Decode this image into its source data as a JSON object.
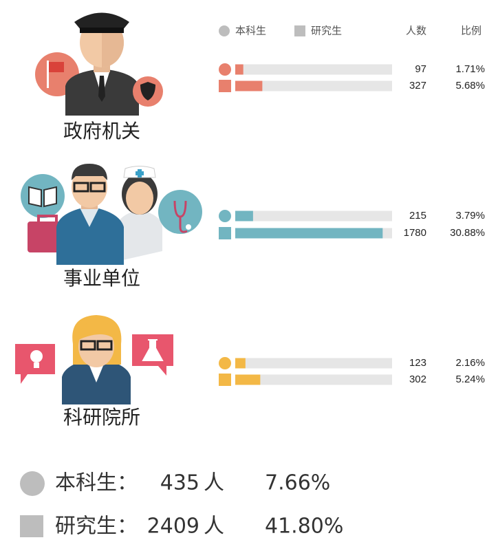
{
  "legend": {
    "undergrad": "本科生",
    "grad": "研究生",
    "count_header": "人数",
    "ratio_header": "比例"
  },
  "groups": [
    {
      "label": "政府机关",
      "color": "#e8806d",
      "rows": [
        {
          "count": 97,
          "ratio": "1.71%"
        },
        {
          "count": 327,
          "ratio": "5.68%"
        }
      ]
    },
    {
      "label": "事业单位",
      "color": "#72b5c1",
      "rows": [
        {
          "count": 215,
          "ratio": "3.79%"
        },
        {
          "count": 1780,
          "ratio": "30.88%"
        }
      ]
    },
    {
      "label": "科研院所",
      "color": "#f3b846",
      "rows": [
        {
          "count": 123,
          "ratio": "2.16%"
        },
        {
          "count": 302,
          "ratio": "5.24%"
        }
      ]
    }
  ],
  "summary": [
    {
      "label": "本科生：",
      "count": 435,
      "unit": "人",
      "ratio": "7.66%"
    },
    {
      "label": "研究生：",
      "count": 2409,
      "unit": "人",
      "ratio": "41.80%"
    }
  ]
}
